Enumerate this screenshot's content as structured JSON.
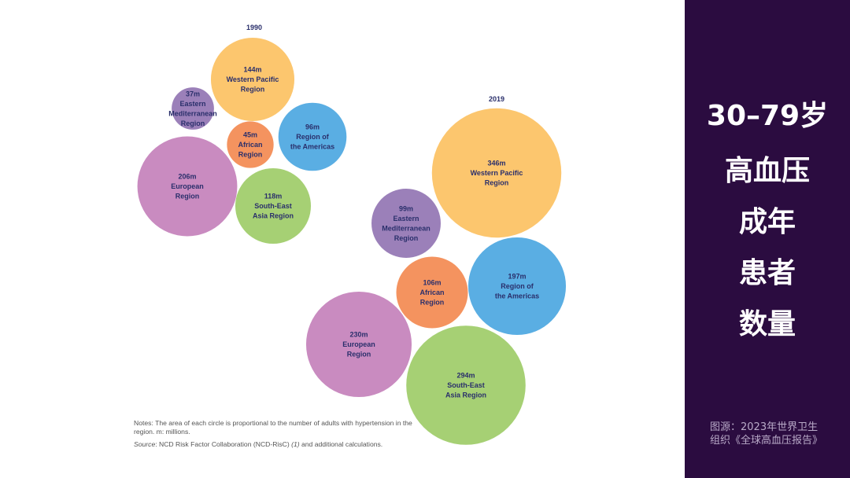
{
  "chart_data": [
    {
      "type": "bubble",
      "title": "1990",
      "unit": "m",
      "series": [
        {
          "name": "Western Pacific Region",
          "label_lines": [
            "Western Pacific",
            "Region"
          ],
          "value": 144,
          "color": "#fcc66e"
        },
        {
          "name": "Eastern Mediterranean Region",
          "label_lines": [
            "Eastern",
            "Mediterranean",
            "Region"
          ],
          "value": 37,
          "color": "#9b80b9"
        },
        {
          "name": "Region of the Americas",
          "label_lines": [
            "Region of",
            "the Americas"
          ],
          "value": 96,
          "color": "#5aaee3"
        },
        {
          "name": "African Region",
          "label_lines": [
            "African",
            "Region"
          ],
          "value": 45,
          "color": "#f4935f"
        },
        {
          "name": "European Region",
          "label_lines": [
            "European",
            "Region"
          ],
          "value": 206,
          "color": "#c98bc0"
        },
        {
          "name": "South-East Asia Region",
          "label_lines": [
            "South-East",
            "Asia Region"
          ],
          "value": 118,
          "color": "#a6d074"
        }
      ]
    },
    {
      "type": "bubble",
      "title": "2019",
      "unit": "m",
      "series": [
        {
          "name": "Western Pacific Region",
          "label_lines": [
            "Western Pacific",
            "Region"
          ],
          "value": 346,
          "color": "#fcc66e"
        },
        {
          "name": "Eastern Mediterranean Region",
          "label_lines": [
            "Eastern",
            "Mediterranean",
            "Region"
          ],
          "value": 99,
          "color": "#9b80b9"
        },
        {
          "name": "Region of the Americas",
          "label_lines": [
            "Region of",
            "the Americas"
          ],
          "value": 197,
          "color": "#5aaee3"
        },
        {
          "name": "African Region",
          "label_lines": [
            "African",
            "Region"
          ],
          "value": 106,
          "color": "#f4935f"
        },
        {
          "name": "European Region",
          "label_lines": [
            "European",
            "Region"
          ],
          "value": 230,
          "color": "#c98bc0"
        },
        {
          "name": "South-East Asia Region",
          "label_lines": [
            "South-East",
            "Asia Region"
          ],
          "value": 294,
          "color": "#a6d074"
        }
      ]
    }
  ],
  "notes": {
    "text": "Notes: The area of each circle is proportional to the number of adults with hypertension in the region. m: millions.",
    "source_label": "Source",
    "source_text": ": NCD Risk Factor Collaboration (NCD-RisC) ",
    "source_ref": "(1)",
    "source_tail": " and additional calculations."
  },
  "side_panel": {
    "background": "#2b0c40",
    "title_lines": [
      "30–79岁",
      "高血压",
      "成年",
      "患者",
      "数量"
    ],
    "source_lines": [
      "图源：2023年世界卫生",
      "组织《全球高血压报告》"
    ]
  }
}
